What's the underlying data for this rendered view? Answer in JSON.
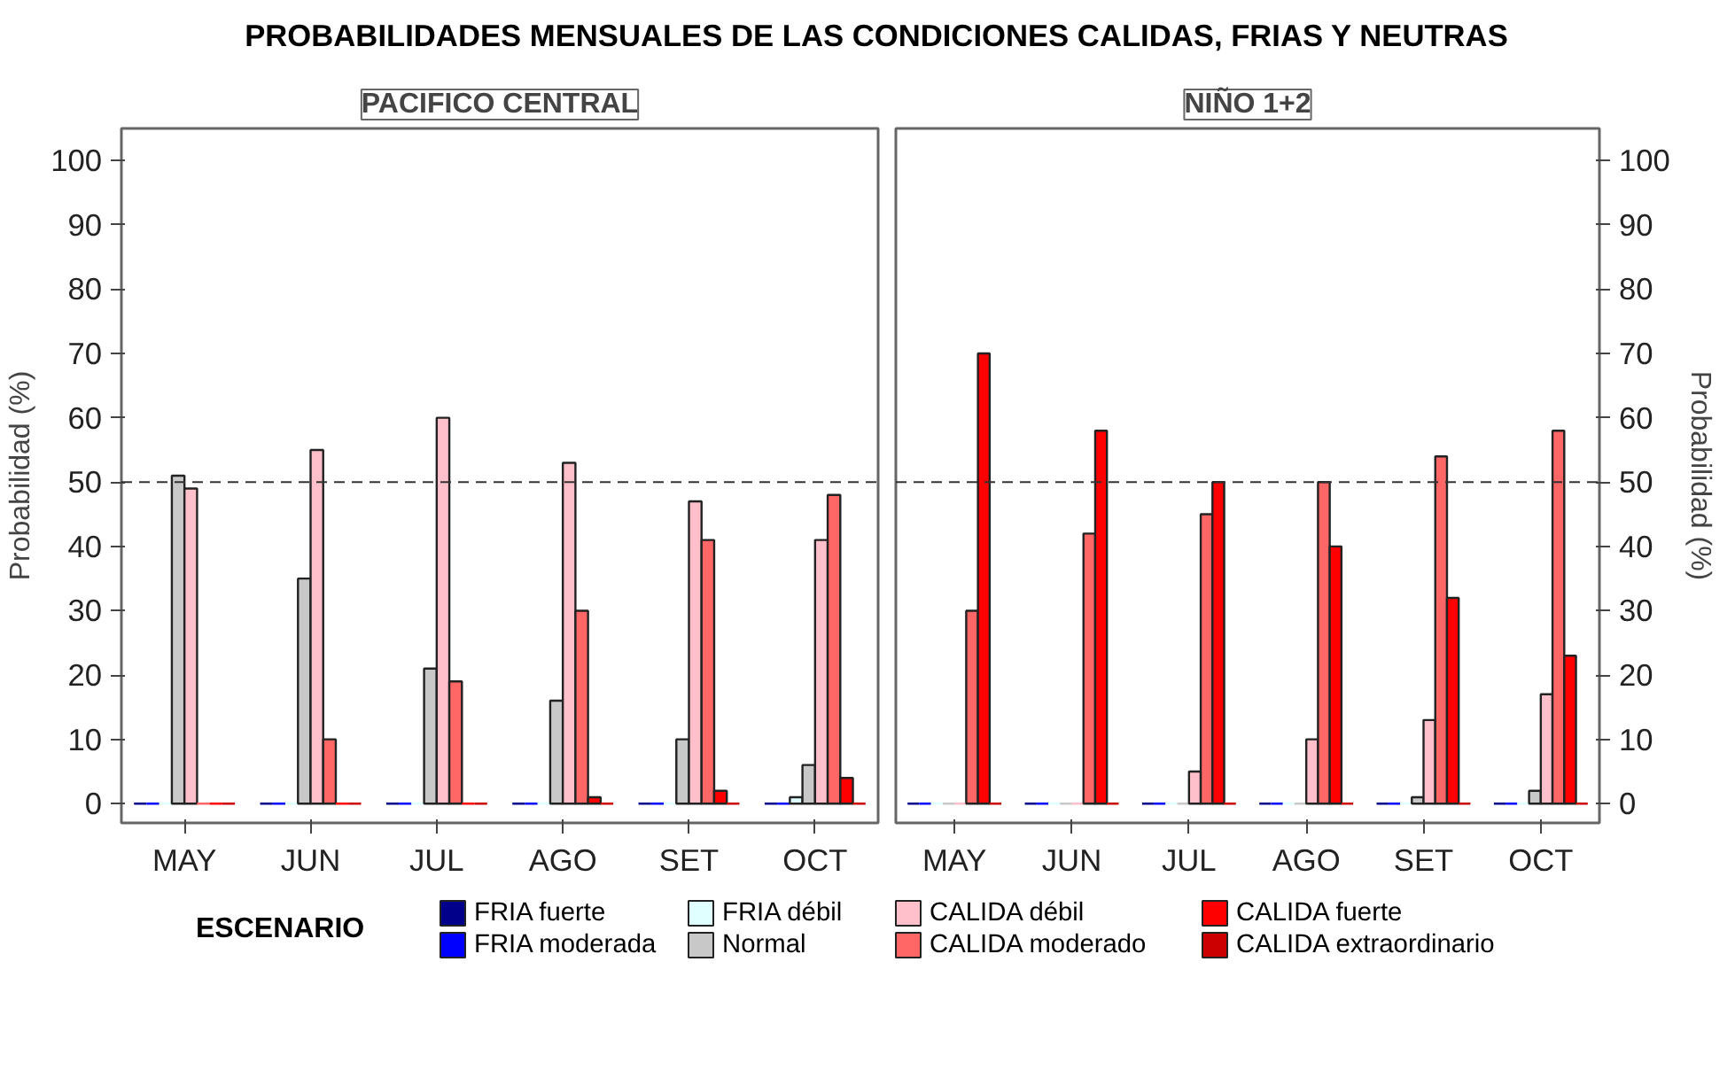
{
  "chart_data": [
    {
      "type": "bar",
      "title": "PACIFICO CENTRAL",
      "annotations": [
        "PROBABILIDADES MENSUALES DE LAS CONDICIONES CALIDAS, FRIAS Y NEUTRAS"
      ],
      "ylabel": "Probabilidad (%)",
      "legend_title": "ESCENARIO",
      "legend": "bottom",
      "grid": false,
      "categories": [
        "MAY",
        "JUN",
        "JUL",
        "AGO",
        "SET",
        "OCT"
      ],
      "ylim": [
        -3,
        105
      ],
      "yticks": [
        0,
        10,
        20,
        30,
        40,
        50,
        60,
        70,
        80,
        90,
        100
      ],
      "ref_lines": [
        {
          "axis": "y",
          "value": 50,
          "line_style": "dashed",
          "color": "#333333"
        }
      ],
      "series": [
        {
          "name": "FRIA fuerte",
          "color": "#00008b",
          "values": [
            0,
            0,
            0,
            0,
            0,
            0
          ]
        },
        {
          "name": "FRIA moderada",
          "color": "#0000ff",
          "values": [
            0,
            0,
            0,
            0,
            0,
            0
          ]
        },
        {
          "name": "FRIA débil",
          "color": "#e0ffff",
          "values": [
            0,
            0,
            0,
            0,
            0,
            1
          ]
        },
        {
          "name": "Normal",
          "color": "#c8c8c8",
          "values": [
            51,
            35,
            21,
            16,
            10,
            6
          ]
        },
        {
          "name": "CALIDA débil",
          "color": "#ffc0cb",
          "values": [
            49,
            55,
            60,
            53,
            47,
            41
          ]
        },
        {
          "name": "CALIDA moderado",
          "color": "#ff6666",
          "values": [
            0,
            10,
            19,
            30,
            41,
            48
          ]
        },
        {
          "name": "CALIDA fuerte",
          "color": "#ff0000",
          "values": [
            0,
            0,
            0,
            1,
            2,
            4
          ]
        },
        {
          "name": "CALIDA extraordinario",
          "color": "#cc0000",
          "values": [
            0,
            0,
            0,
            0,
            0,
            0
          ]
        }
      ]
    },
    {
      "type": "bar",
      "title": "NIÑO 1+2",
      "ylabel": "Probabilidad (%)",
      "grid": false,
      "categories": [
        "MAY",
        "JUN",
        "JUL",
        "AGO",
        "SET",
        "OCT"
      ],
      "ylim": [
        -3,
        105
      ],
      "yticks": [
        0,
        10,
        20,
        30,
        40,
        50,
        60,
        70,
        80,
        90,
        100
      ],
      "ref_lines": [
        {
          "axis": "y",
          "value": 50,
          "line_style": "dashed",
          "color": "#333333"
        }
      ],
      "series": [
        {
          "color": "#00008b",
          "values": [
            0,
            0,
            0,
            0,
            0,
            0
          ]
        },
        {
          "color": "#0000ff",
          "values": [
            0,
            0,
            0,
            0,
            0,
            0
          ]
        },
        {
          "color": "#e0ffff",
          "values": [
            0,
            0,
            0,
            0,
            0,
            0
          ]
        },
        {
          "color": "#c8c8c8",
          "values": [
            0,
            0,
            0,
            0,
            1,
            2
          ]
        },
        {
          "color": "#ffc0cb",
          "values": [
            0,
            0,
            5,
            10,
            13,
            17
          ]
        },
        {
          "color": "#ff6666",
          "values": [
            30,
            42,
            45,
            50,
            54,
            58
          ]
        },
        {
          "color": "#ff0000",
          "values": [
            70,
            58,
            50,
            40,
            32,
            23
          ]
        },
        {
          "color": "#cc0000",
          "values": [
            0,
            0,
            0,
            0,
            0,
            0
          ]
        }
      ]
    }
  ]
}
